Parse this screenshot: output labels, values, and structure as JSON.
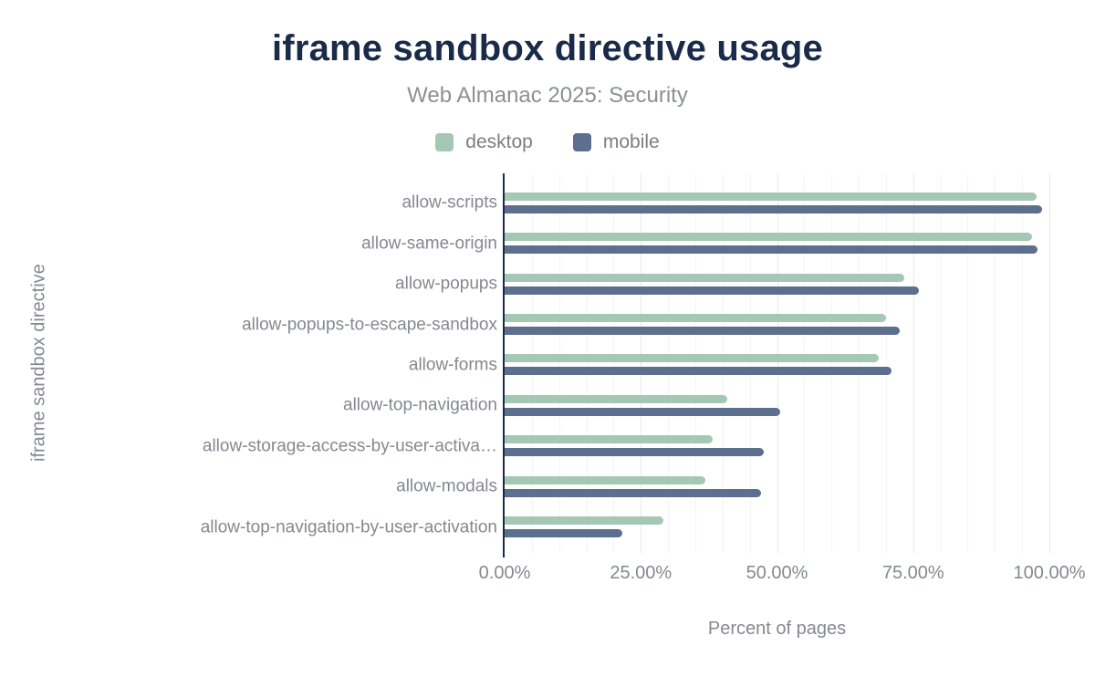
{
  "chart": {
    "title": "iframe sandbox directive usage",
    "subtitle": "Web Almanac 2025: Security"
  },
  "colors": {
    "title_navy": "#1a2b49",
    "axis_line": "#1a2b49",
    "label_gray": "#848990",
    "desktop_green": "#a5c8b4",
    "mobile_blue": "#5d6f8e"
  },
  "chart_data": {
    "type": "bar",
    "orientation": "horizontal",
    "title": "iframe sandbox directive usage",
    "subtitle": "Web Almanac 2025: Security",
    "categories": [
      "allow-scripts",
      "allow-same-origin",
      "allow-popups",
      "allow-popups-to-escape-sandbox",
      "allow-forms",
      "allow-top-navigation",
      "allow-storage-access-by-user-activa…",
      "allow-modals",
      "allow-top-navigation-by-user-activation"
    ],
    "series": [
      {
        "name": "desktop",
        "color": "#a5c8b4",
        "values": [
          97.6,
          96.9,
          73.4,
          70.1,
          68.6,
          40.9,
          38.2,
          36.9,
          29.2
        ]
      },
      {
        "name": "mobile",
        "color": "#5d6f8e",
        "values": [
          98.6,
          97.9,
          76.1,
          72.5,
          71.0,
          50.6,
          47.5,
          47.0,
          21.6
        ]
      }
    ],
    "xlabel": "Percent of pages",
    "ylabel": "iframe sandbox directive",
    "xlim": [
      0,
      100
    ],
    "xticks": [
      {
        "label": "0.00%",
        "value": 0
      },
      {
        "label": "25.00%",
        "value": 25
      },
      {
        "label": "50.00%",
        "value": 50
      },
      {
        "label": "75.00%",
        "value": 75
      },
      {
        "label": "100.00%",
        "value": 100
      }
    ],
    "grid": {
      "minor_step_pct": 5,
      "major_step_pct": 25
    },
    "legend_position": "top",
    "value_labels_shown": false
  }
}
